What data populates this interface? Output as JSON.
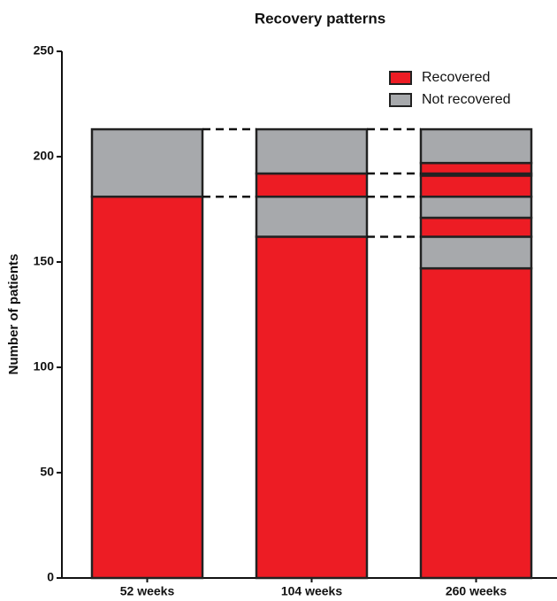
{
  "chart_data": {
    "type": "stacked-segments",
    "title": "Recovery patterns",
    "y_label": "Number of patients",
    "ylim": [
      0,
      250
    ],
    "yticks": [
      0,
      50,
      100,
      150,
      200,
      250
    ],
    "legend": [
      {
        "name": "Recovered",
        "color": "#ed1c24"
      },
      {
        "name": "Not recovered",
        "color": "#a7a9ac"
      }
    ],
    "bars": [
      {
        "label": "52 weeks",
        "segments": [
          {
            "value": 181,
            "color": "#ed1c24"
          },
          {
            "value": 32,
            "color": "#a7a9ac"
          }
        ]
      },
      {
        "label": "104 weeks",
        "segments": [
          {
            "value": 162,
            "color": "#ed1c24"
          },
          {
            "value": 19,
            "color": "#a7a9ac"
          },
          {
            "value": 11,
            "color": "#ed1c24"
          },
          {
            "value": 21,
            "color": "#a7a9ac"
          }
        ]
      },
      {
        "label": "260 weeks",
        "segments": [
          {
            "value": 147,
            "color": "#ed1c24"
          },
          {
            "value": 15,
            "color": "#a7a9ac"
          },
          {
            "value": 9,
            "color": "#ed1c24"
          },
          {
            "value": 10,
            "color": "#a7a9ac"
          },
          {
            "value": 10,
            "color": "#ed1c24"
          },
          {
            "value": 1,
            "color": "#a7a9ac"
          },
          {
            "value": 5,
            "color": "#ed1c24"
          },
          {
            "value": 16,
            "color": "#a7a9ac"
          }
        ]
      }
    ]
  }
}
